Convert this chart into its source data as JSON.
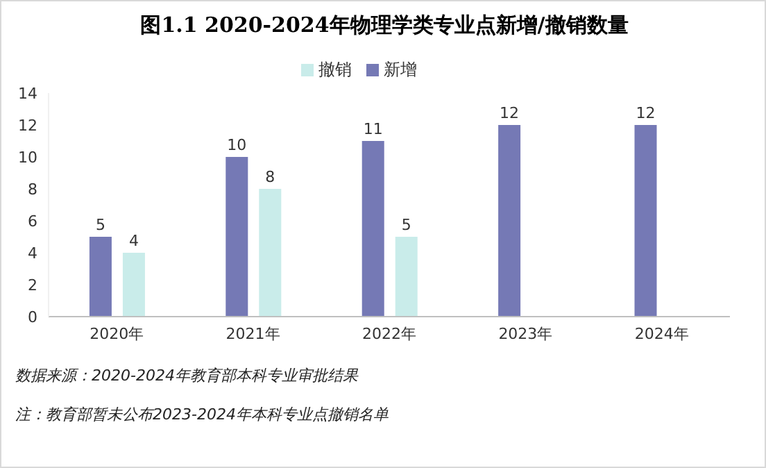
{
  "chart_data": {
    "type": "bar",
    "title": "图1.1 2020-2024年物理学类专业点新增/撤销数量",
    "categories": [
      "2020年",
      "2021年",
      "2022年",
      "2023年",
      "2024年"
    ],
    "series": [
      {
        "name": "新增",
        "color": "#7579b5",
        "values": [
          5,
          10,
          11,
          12,
          12
        ]
      },
      {
        "name": "撤销",
        "color": "#c9ecea",
        "values": [
          4,
          8,
          5,
          null,
          null
        ]
      }
    ],
    "ylim": [
      0,
      14
    ],
    "yticks": [
      0,
      2,
      4,
      6,
      8,
      10,
      12,
      14
    ],
    "data_labels": true,
    "legend": "top",
    "grid": false,
    "annotations": [
      "数据来源：2020-2024年教育部本科专业审批结果",
      "注：教育部暂未公布2023-2024年本科专业点撤销名单"
    ]
  }
}
